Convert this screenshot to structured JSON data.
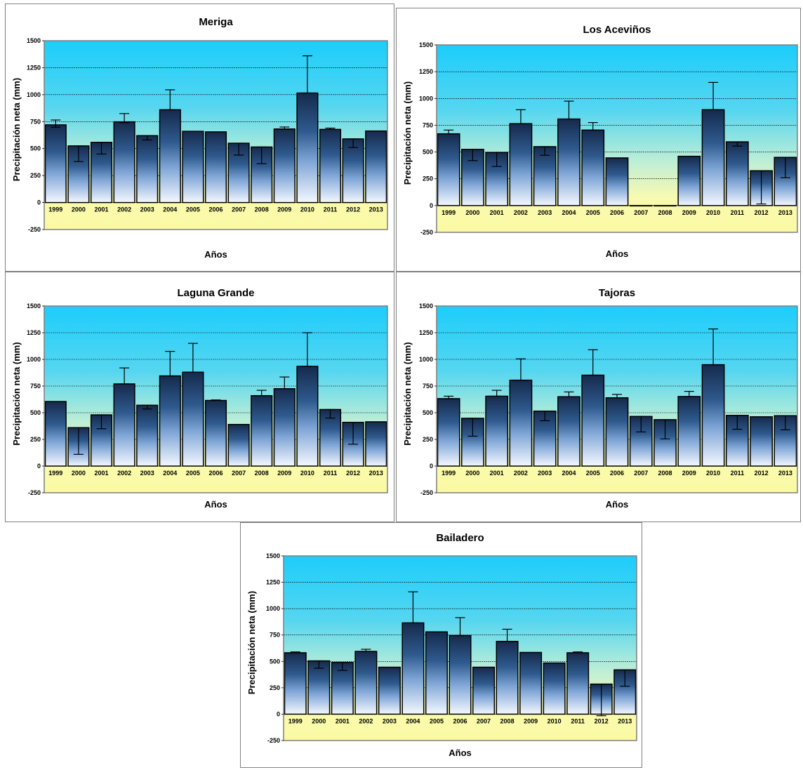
{
  "chart_data": [
    {
      "type": "bar",
      "title": "Meriga",
      "xlabel": "Años",
      "ylabel": "Precipitación neta  (mm)",
      "ylim": [
        -250,
        1500
      ],
      "yticks": [
        -250,
        0,
        250,
        500,
        750,
        1000,
        1250,
        1500
      ],
      "grid": true,
      "categories": [
        "1999",
        "2000",
        "2001",
        "2002",
        "2003",
        "2004",
        "2005",
        "2006",
        "2007",
        "2008",
        "2009",
        "2010",
        "2011",
        "2012",
        "2013"
      ],
      "values": [
        720,
        525,
        558,
        748,
        620,
        860,
        660,
        655,
        550,
        515,
        682,
        1015,
        678,
        590,
        663
      ],
      "error_low": [
        698,
        380,
        450,
        740,
        580,
        860,
        660,
        655,
        440,
        360,
        678,
        1015,
        678,
        510,
        663
      ],
      "error_high": [
        765,
        525,
        558,
        825,
        620,
        1045,
        660,
        655,
        550,
        515,
        700,
        1360,
        690,
        590,
        663
      ]
    },
    {
      "type": "bar",
      "title": "Los Aceviños",
      "xlabel": "Años",
      "ylabel": "Precipitación neta  (mm)",
      "ylim": [
        -250,
        1500
      ],
      "yticks": [
        -250,
        0,
        250,
        500,
        750,
        1000,
        1250,
        1500
      ],
      "grid": true,
      "categories": [
        "1999",
        "2000",
        "2001",
        "2002",
        "2003",
        "2004",
        "2005",
        "2006",
        "2007",
        "2008",
        "2009",
        "2010",
        "2011",
        "2012",
        "2013"
      ],
      "values": [
        670,
        525,
        495,
        765,
        550,
        808,
        705,
        445,
        0,
        0,
        460,
        895,
        595,
        325,
        450
      ],
      "error_low": [
        670,
        420,
        365,
        765,
        470,
        808,
        705,
        445,
        0,
        0,
        460,
        895,
        555,
        15,
        260
      ],
      "error_high": [
        705,
        525,
        495,
        895,
        550,
        975,
        775,
        445,
        0,
        0,
        460,
        1150,
        595,
        325,
        450
      ]
    },
    {
      "type": "bar",
      "title": "Laguna Grande",
      "xlabel": "Años",
      "ylabel": "Precipitación neta  (mm)",
      "ylim": [
        -250,
        1500
      ],
      "yticks": [
        -250,
        0,
        250,
        500,
        750,
        1000,
        1250,
        1500
      ],
      "grid": true,
      "categories": [
        "1999",
        "2000",
        "2001",
        "2002",
        "2003",
        "2004",
        "2005",
        "2006",
        "2007",
        "2008",
        "2009",
        "2010",
        "2011",
        "2012",
        "2013"
      ],
      "values": [
        605,
        360,
        480,
        770,
        570,
        845,
        880,
        615,
        390,
        660,
        725,
        935,
        530,
        410,
        415
      ],
      "error_low": [
        605,
        110,
        350,
        770,
        535,
        845,
        880,
        615,
        390,
        660,
        725,
        935,
        450,
        205,
        415
      ],
      "error_high": [
        605,
        360,
        480,
        920,
        570,
        1075,
        1150,
        620,
        390,
        710,
        835,
        1250,
        530,
        410,
        415
      ]
    },
    {
      "type": "bar",
      "title": "Tajoras",
      "xlabel": "Años",
      "ylabel": "Precipitación neta  (mm)",
      "ylim": [
        -250,
        1500
      ],
      "yticks": [
        -250,
        0,
        250,
        500,
        750,
        1000,
        1250,
        1500
      ],
      "grid": true,
      "categories": [
        "1999",
        "2000",
        "2001",
        "2002",
        "2003",
        "2004",
        "2005",
        "2006",
        "2007",
        "2008",
        "2009",
        "2010",
        "2011",
        "2012",
        "2013"
      ],
      "values": [
        632,
        448,
        655,
        805,
        515,
        650,
        852,
        640,
        465,
        435,
        652,
        950,
        475,
        462,
        472
      ],
      "error_low": [
        632,
        280,
        655,
        805,
        425,
        650,
        852,
        640,
        320,
        255,
        652,
        950,
        345,
        462,
        340
      ],
      "error_high": [
        655,
        448,
        710,
        1005,
        515,
        695,
        1090,
        672,
        465,
        435,
        700,
        1285,
        475,
        462,
        472
      ]
    },
    {
      "type": "bar",
      "title": "Bailadero",
      "xlabel": "Años",
      "ylabel": "Precipitación neta  (mm)",
      "ylim": [
        -250,
        1500
      ],
      "yticks": [
        -250,
        0,
        250,
        500,
        750,
        1000,
        1250,
        1500
      ],
      "grid": true,
      "categories": [
        "1999",
        "2000",
        "2001",
        "2002",
        "2003",
        "2004",
        "2005",
        "2006",
        "2007",
        "2008",
        "2009",
        "2010",
        "2011",
        "2012",
        "2013"
      ],
      "values": [
        582,
        505,
        490,
        595,
        445,
        865,
        780,
        745,
        445,
        690,
        585,
        485,
        582,
        285,
        420
      ],
      "error_low": [
        582,
        435,
        415,
        595,
        445,
        865,
        780,
        745,
        445,
        690,
        585,
        485,
        582,
        -15,
        265
      ],
      "error_high": [
        590,
        505,
        490,
        615,
        445,
        1160,
        780,
        915,
        445,
        805,
        585,
        485,
        590,
        285,
        420
      ]
    }
  ]
}
